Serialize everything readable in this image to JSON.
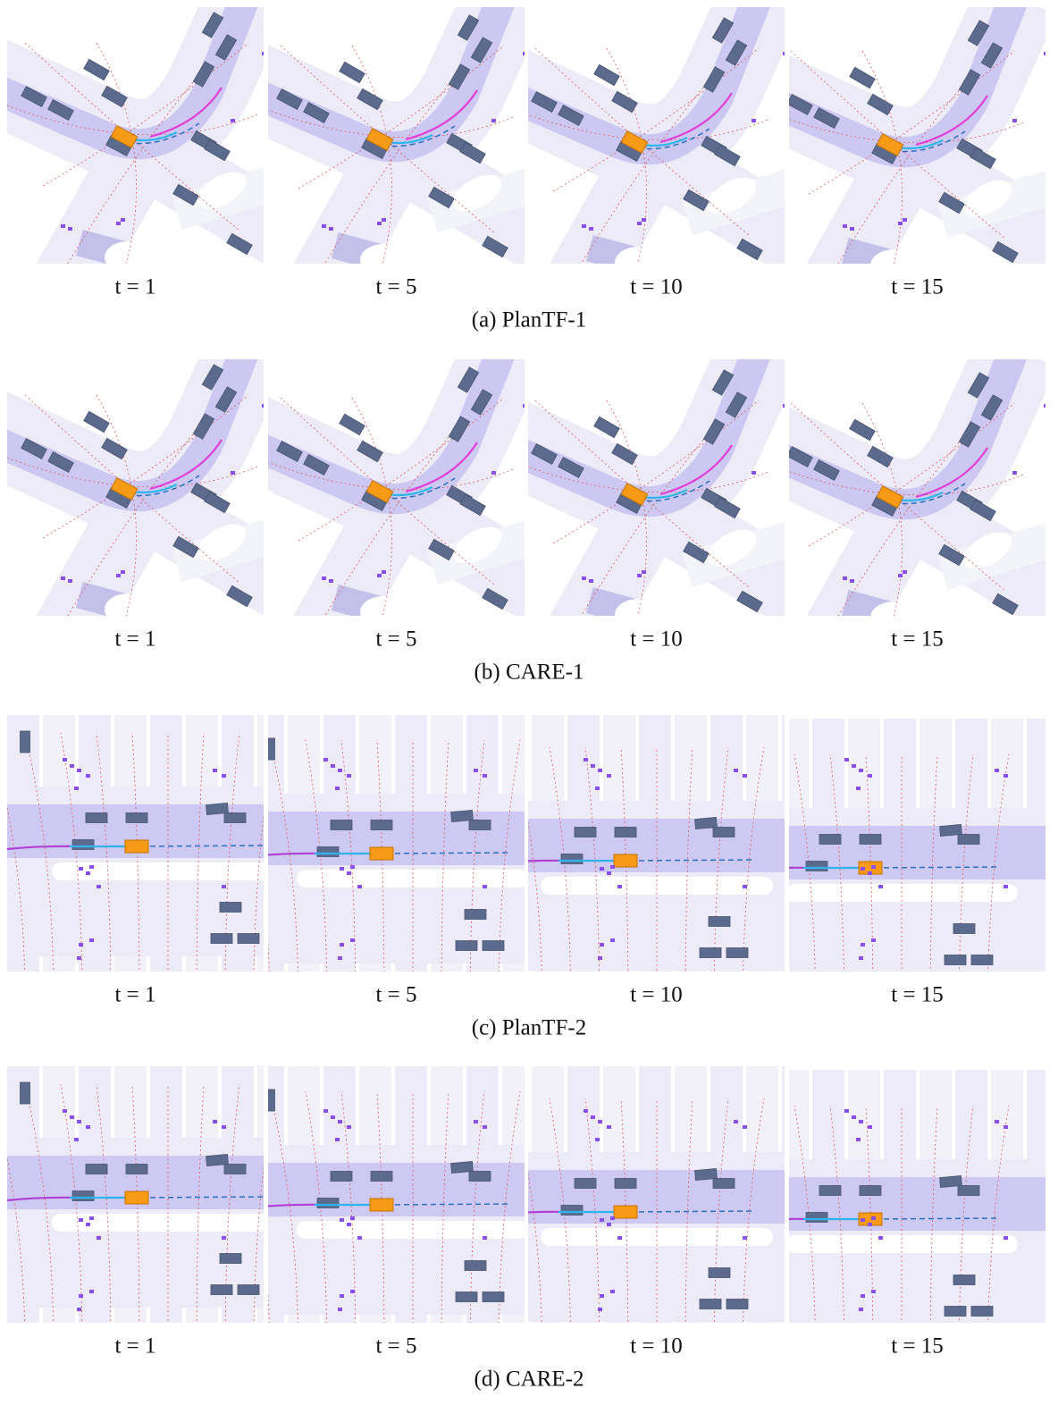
{
  "figure": {
    "rows": [
      {
        "caption": "(a) PlanTF-1",
        "panels": [
          {
            "label": "t = 1"
          },
          {
            "label": "t = 5"
          },
          {
            "label": "t = 10"
          },
          {
            "label": "t = 15"
          }
        ]
      },
      {
        "caption": "(b) CARE-1",
        "panels": [
          {
            "label": "t = 1"
          },
          {
            "label": "t = 5"
          },
          {
            "label": "t = 10"
          },
          {
            "label": "t = 15"
          }
        ]
      },
      {
        "caption": "(c) PlanTF-2",
        "panels": [
          {
            "label": "t = 1"
          },
          {
            "label": "t = 5"
          },
          {
            "label": "t = 10"
          },
          {
            "label": "t = 15"
          }
        ]
      },
      {
        "caption": "(d) CARE-2",
        "panels": [
          {
            "label": "t = 1"
          },
          {
            "label": "t = 5"
          },
          {
            "label": "t = 10"
          },
          {
            "label": "t = 15"
          }
        ]
      }
    ]
  }
}
